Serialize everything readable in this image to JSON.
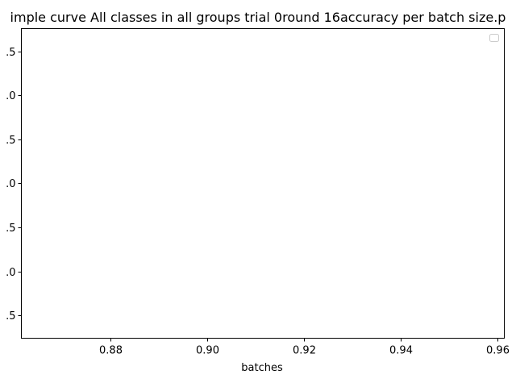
{
  "chart_data": {
    "type": "line",
    "title": "imple curve All classes in all groups trial 0round 16accuracy per batch size.p",
    "xlabel": "batches",
    "ylabel": "",
    "x_ticks": [
      "0.88",
      "0.90",
      "0.92",
      "0.94",
      "0.96"
    ],
    "x_tick_values": [
      0.88,
      0.9,
      0.92,
      0.94,
      0.96
    ],
    "y_ticks": [
      ".5",
      ".0",
      ".5",
      ".0",
      ".5",
      ".0",
      ".5"
    ],
    "y_tick_values": [
      2.5,
      2.0,
      1.5,
      1.0,
      0.5,
      0.0,
      -0.5
    ],
    "xlim": [
      0.8615,
      0.9615
    ],
    "ylim": [
      -0.76,
      2.76
    ],
    "series": [],
    "legend": {
      "placement": "top-right",
      "entries": []
    },
    "grid": false
  }
}
